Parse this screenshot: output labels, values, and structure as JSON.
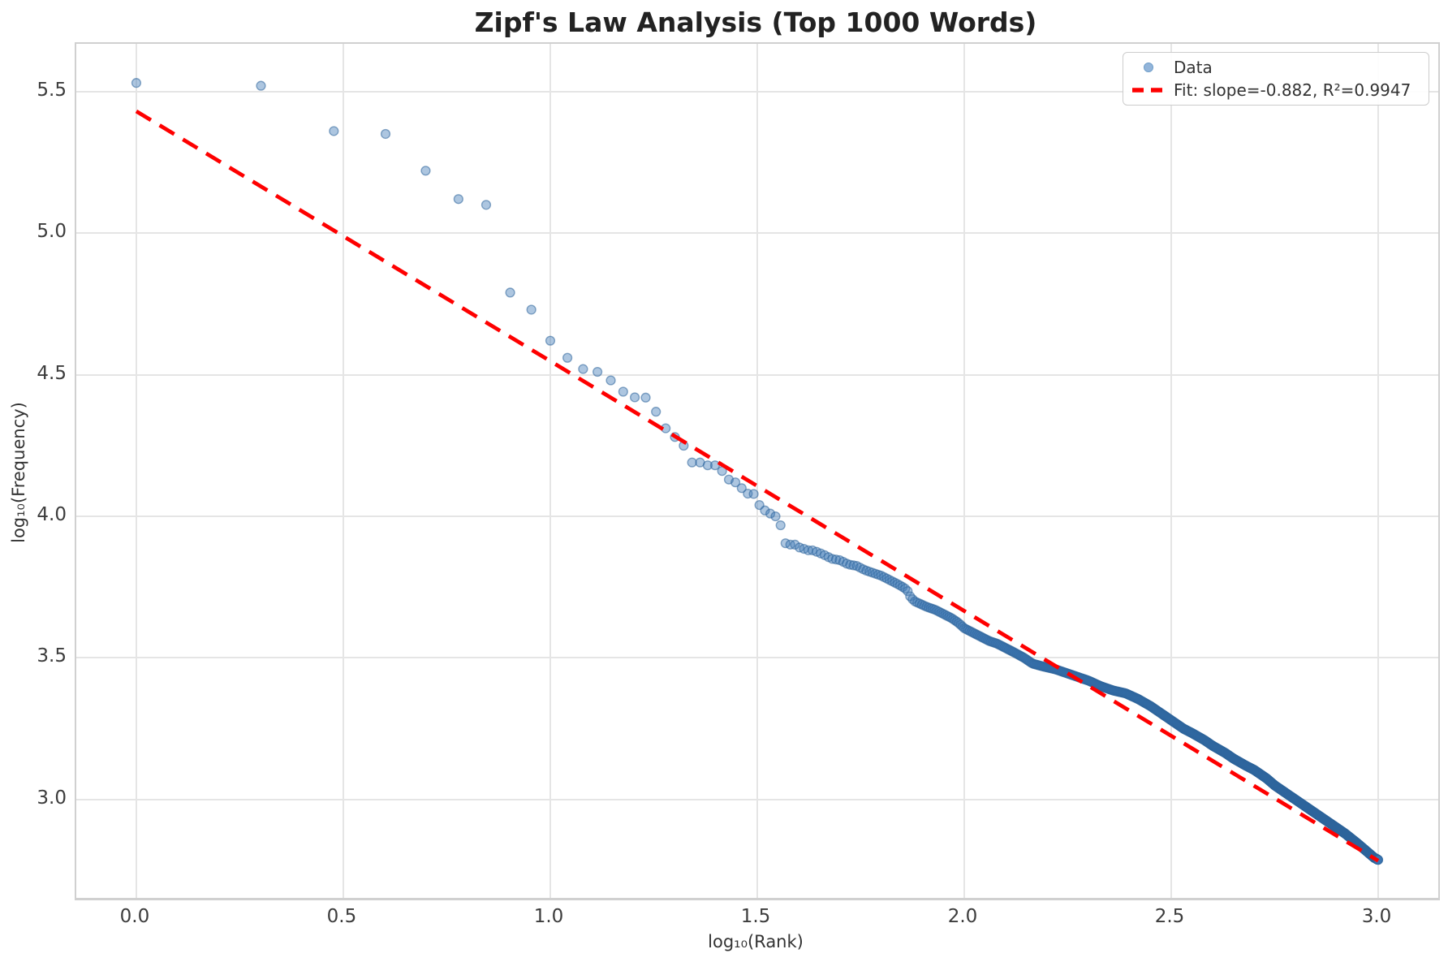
{
  "title": "Zipf's Law Analysis (Top 1000 Words)",
  "axes": {
    "xlabel": "log₁₀(Rank)",
    "ylabel": "log₁₀(Frequency)"
  },
  "legend": {
    "position": "upper right",
    "items": [
      {
        "label": "Data",
        "marker": "dot"
      },
      {
        "label": "Fit: slope=-0.882, R²=0.9947",
        "marker": "dashed-line"
      }
    ]
  },
  "chart_data": {
    "type": "scatter",
    "title": "Zipf's Law Analysis (Top 1000 Words)",
    "xlabel": "log₁₀(Rank)",
    "ylabel": "log₁₀(Frequency)",
    "xlim": [
      -0.145,
      3.145
    ],
    "ylim": [
      2.653,
      5.668
    ],
    "xtick_values": [
      0.0,
      0.5,
      1.0,
      1.5,
      2.0,
      2.5,
      3.0
    ],
    "xtick_labels": [
      "0.0",
      "0.5",
      "1.0",
      "1.5",
      "2.0",
      "2.5",
      "3.0"
    ],
    "ytick_values": [
      3.0,
      3.5,
      4.0,
      4.5,
      5.0,
      5.5
    ],
    "ytick_labels": [
      "3.0",
      "3.5",
      "4.0",
      "4.5",
      "5.0",
      "5.5"
    ],
    "grid": true,
    "grid_color": "#e5e5e5",
    "series": [
      {
        "name": "Data",
        "type": "scatter",
        "n_points": 1000,
        "x_definition": "x = log10(rank), rank = 1..1000",
        "marker_radius": 5.4,
        "marker_fill": "rgba(60,120,180,0.42)",
        "marker_edge": "rgba(45,100,155,0.55)",
        "marker_edge_width": 1.4,
        "curve_points": [
          [
            0.0,
            5.53
          ],
          [
            0.301,
            5.52
          ],
          [
            0.477,
            5.36
          ],
          [
            0.602,
            5.35
          ],
          [
            0.699,
            5.22
          ],
          [
            0.778,
            5.12
          ],
          [
            0.845,
            5.1
          ],
          [
            0.903,
            4.79
          ],
          [
            0.954,
            4.73
          ],
          [
            1.0,
            4.62
          ],
          [
            1.041,
            4.56
          ],
          [
            1.079,
            4.52
          ],
          [
            1.114,
            4.51
          ],
          [
            1.146,
            4.48
          ],
          [
            1.176,
            4.44
          ],
          [
            1.204,
            4.42
          ],
          [
            1.23,
            4.42
          ],
          [
            1.255,
            4.37
          ],
          [
            1.279,
            4.31
          ],
          [
            1.301,
            4.28
          ],
          [
            1.322,
            4.25
          ],
          [
            1.342,
            4.19
          ],
          [
            1.362,
            4.19
          ],
          [
            1.38,
            4.18
          ],
          [
            1.398,
            4.18
          ],
          [
            1.415,
            4.16
          ],
          [
            1.431,
            4.13
          ],
          [
            1.447,
            4.12
          ],
          [
            1.462,
            4.1
          ],
          [
            1.477,
            4.08
          ],
          [
            1.491,
            4.08
          ],
          [
            1.505,
            4.04
          ],
          [
            1.519,
            4.02
          ],
          [
            1.531,
            4.01
          ],
          [
            1.544,
            4.0
          ],
          [
            1.556,
            3.97
          ],
          [
            1.568,
            3.905
          ],
          [
            1.58,
            3.9
          ],
          [
            1.591,
            3.9
          ],
          [
            1.602,
            3.89
          ],
          [
            1.613,
            3.885
          ],
          [
            1.623,
            3.88
          ],
          [
            1.633,
            3.88
          ],
          [
            1.643,
            3.875
          ],
          [
            1.66,
            3.865
          ],
          [
            1.68,
            3.85
          ],
          [
            1.7,
            3.845
          ],
          [
            1.72,
            3.83
          ],
          [
            1.74,
            3.825
          ],
          [
            1.76,
            3.81
          ],
          [
            1.78,
            3.8
          ],
          [
            1.8,
            3.79
          ],
          [
            1.82,
            3.775
          ],
          [
            1.84,
            3.76
          ],
          [
            1.852,
            3.75
          ],
          [
            1.862,
            3.74
          ],
          [
            1.87,
            3.715
          ],
          [
            1.88,
            3.7
          ],
          [
            1.895,
            3.69
          ],
          [
            1.91,
            3.68
          ],
          [
            1.93,
            3.67
          ],
          [
            1.95,
            3.655
          ],
          [
            1.97,
            3.64
          ],
          [
            1.985,
            3.625
          ],
          [
            2.0,
            3.605
          ],
          [
            2.02,
            3.59
          ],
          [
            2.04,
            3.575
          ],
          [
            2.06,
            3.56
          ],
          [
            2.08,
            3.55
          ],
          [
            2.1,
            3.535
          ],
          [
            2.12,
            3.52
          ],
          [
            2.145,
            3.5
          ],
          [
            2.165,
            3.48
          ],
          [
            2.19,
            3.47
          ],
          [
            2.22,
            3.46
          ],
          [
            2.25,
            3.445
          ],
          [
            2.28,
            3.43
          ],
          [
            2.3,
            3.42
          ],
          [
            2.33,
            3.4
          ],
          [
            2.36,
            3.385
          ],
          [
            2.39,
            3.375
          ],
          [
            2.42,
            3.355
          ],
          [
            2.45,
            3.33
          ],
          [
            2.48,
            3.3
          ],
          [
            2.5,
            3.28
          ],
          [
            2.53,
            3.25
          ],
          [
            2.55,
            3.235
          ],
          [
            2.58,
            3.21
          ],
          [
            2.6,
            3.19
          ],
          [
            2.63,
            3.165
          ],
          [
            2.65,
            3.145
          ],
          [
            2.68,
            3.12
          ],
          [
            2.7,
            3.105
          ],
          [
            2.73,
            3.075
          ],
          [
            2.75,
            3.05
          ],
          [
            2.78,
            3.02
          ],
          [
            2.8,
            3.0
          ],
          [
            2.83,
            2.97
          ],
          [
            2.85,
            2.95
          ],
          [
            2.88,
            2.92
          ],
          [
            2.9,
            2.9
          ],
          [
            2.92,
            2.88
          ],
          [
            2.95,
            2.845
          ],
          [
            2.97,
            2.82
          ],
          [
            2.99,
            2.795
          ],
          [
            3.0,
            2.787
          ]
        ]
      },
      {
        "name": "Fit: slope=-0.882, R²=0.9947",
        "type": "line",
        "style": "dashed",
        "color": "#fe0000",
        "line_width": 4.8,
        "dash_pattern": [
          21,
          12.5
        ],
        "slope": -0.882,
        "intercept": 5.43,
        "r_squared": 0.9947,
        "x_start": 0.0,
        "x_end": 3.0
      }
    ]
  }
}
